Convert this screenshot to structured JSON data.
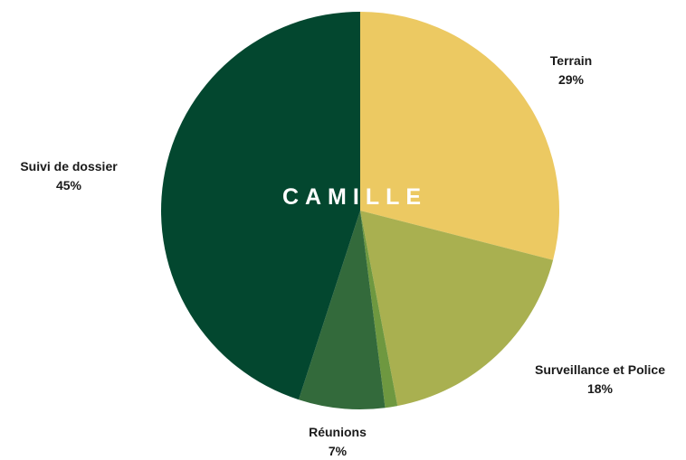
{
  "chart_data": {
    "type": "pie",
    "center_title": "CAMILLE",
    "slices": [
      {
        "label": "Terrain",
        "value": 29,
        "display": "29%",
        "color": "#ECC962"
      },
      {
        "label": "Surveillance et Police",
        "value": 18,
        "display": "18%",
        "color": "#A9B050"
      },
      {
        "label": "",
        "value": 1,
        "display": "",
        "color": "#6E9840"
      },
      {
        "label": "Réunions",
        "value": 7,
        "display": "7%",
        "color": "#336A3B"
      },
      {
        "label": "Suivi de dossier",
        "value": 45,
        "display": "45%",
        "color": "#03472F"
      }
    ],
    "legend": "none"
  }
}
